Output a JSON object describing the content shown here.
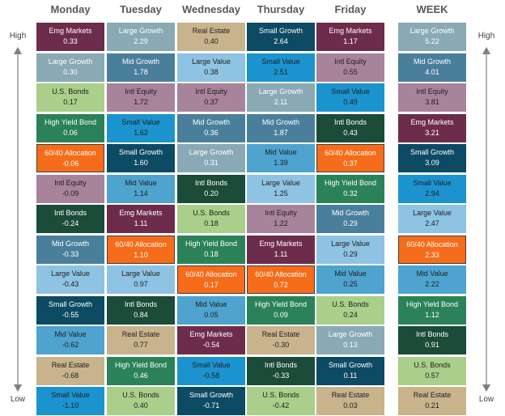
{
  "colors": {
    "Emg Markets": {
      "bg": "#6e2c4c",
      "fg": "#ffffff"
    },
    "Large Growth": {
      "bg": "#89a9b4",
      "fg": "#ffffff"
    },
    "Real Estate": {
      "bg": "#c8b38d",
      "fg": "#1f1f1f"
    },
    "Small Growth": {
      "bg": "#0d4a63",
      "fg": "#ffffff"
    },
    "Large Value": {
      "bg": "#8fc3e3",
      "fg": "#1f1f1f"
    },
    "Mid Growth": {
      "bg": "#4a7f9c",
      "fg": "#ffffff"
    },
    "Small Value": {
      "bg": "#1b93cf",
      "fg": "#1f1f1f"
    },
    "Intl Equity": {
      "bg": "#a8839c",
      "fg": "#1f1f1f"
    },
    "U.S. Bonds": {
      "bg": "#a9cf8a",
      "fg": "#1f1f1f"
    },
    "Intl Bonds": {
      "bg": "#1b4b39",
      "fg": "#ffffff"
    },
    "High Yield Bond": {
      "bg": "#2b8259",
      "fg": "#ffffff"
    },
    "60/40 Allocation": {
      "bg": "#f56c1a",
      "fg": "#ffffff"
    },
    "Mid Value": {
      "bg": "#4ea3cf",
      "fg": "#1f1f1f"
    }
  },
  "scale": {
    "high": "High",
    "low": "Low"
  },
  "chart_data": {
    "type": "table",
    "title": "",
    "highlight": "60/40 Allocation",
    "columns": [
      {
        "header": "Monday",
        "cells": [
          {
            "name": "Emg Markets",
            "value": "0.33"
          },
          {
            "name": "Large Growth",
            "value": "0.30"
          },
          {
            "name": "U.S. Bonds",
            "value": "0.17"
          },
          {
            "name": "High Yield Bond",
            "value": "0.06"
          },
          {
            "name": "60/40 Allocation",
            "value": "-0.06"
          },
          {
            "name": "Intl Equity",
            "value": "-0.09"
          },
          {
            "name": "Intl Bonds",
            "value": "-0.24"
          },
          {
            "name": "Mid Growth",
            "value": "-0.33"
          },
          {
            "name": "Large Value",
            "value": "-0.43"
          },
          {
            "name": "Small Growth",
            "value": "-0.55"
          },
          {
            "name": "Mid Value",
            "value": "-0.62"
          },
          {
            "name": "Real Estate",
            "value": "-0.68"
          },
          {
            "name": "Small Value",
            "value": "-1.10"
          }
        ]
      },
      {
        "header": "Tuesday",
        "cells": [
          {
            "name": "Large Growth",
            "value": "2.29"
          },
          {
            "name": "Mid Growth",
            "value": "1.78"
          },
          {
            "name": "Intl Equity",
            "value": "1.72"
          },
          {
            "name": "Small Value",
            "value": "1.62"
          },
          {
            "name": "Small Growth",
            "value": "1.60"
          },
          {
            "name": "Mid Value",
            "value": "1.14"
          },
          {
            "name": "Emg Markets",
            "value": "1.11"
          },
          {
            "name": "60/40 Allocation",
            "value": "1.10"
          },
          {
            "name": "Large Value",
            "value": "0.97"
          },
          {
            "name": "Intl Bonds",
            "value": "0.84"
          },
          {
            "name": "Real Estate",
            "value": "0.77"
          },
          {
            "name": "High Yield Bond",
            "value": "0.46"
          },
          {
            "name": "U.S. Bonds",
            "value": "0.40"
          }
        ]
      },
      {
        "header": "Wednesday",
        "cells": [
          {
            "name": "Real Estate",
            "value": "0.40"
          },
          {
            "name": "Large Value",
            "value": "0.38"
          },
          {
            "name": "Intl Equity",
            "value": "0.37"
          },
          {
            "name": "Mid Growth",
            "value": "0.36"
          },
          {
            "name": "Large Growth",
            "value": "0.31"
          },
          {
            "name": "Intl Bonds",
            "value": "0.20"
          },
          {
            "name": "U.S. Bonds",
            "value": "0.18"
          },
          {
            "name": "High Yield Bond",
            "value": "0.18"
          },
          {
            "name": "60/40 Allocation",
            "value": "0.17"
          },
          {
            "name": "Mid Value",
            "value": "0.05"
          },
          {
            "name": "Emg Markets",
            "value": "-0.54"
          },
          {
            "name": "Small Value",
            "value": "-0.58"
          },
          {
            "name": "Small Growth",
            "value": "-0.71"
          }
        ]
      },
      {
        "header": "Thursday",
        "cells": [
          {
            "name": "Small Growth",
            "value": "2.64"
          },
          {
            "name": "Small Value",
            "value": "2.51"
          },
          {
            "name": "Large Growth",
            "value": "2.11"
          },
          {
            "name": "Mid Growth",
            "value": "1.87"
          },
          {
            "name": "Mid Value",
            "value": "1.39"
          },
          {
            "name": "Large Value",
            "value": "1.25"
          },
          {
            "name": "Intl Equity",
            "value": "1.22"
          },
          {
            "name": "Emg Markets",
            "value": "1.11"
          },
          {
            "name": "60/40 Allocation",
            "value": "0.72"
          },
          {
            "name": "High Yield Bond",
            "value": "0.09"
          },
          {
            "name": "Real Estate",
            "value": "-0.30"
          },
          {
            "name": "Intl Bonds",
            "value": "-0.33"
          },
          {
            "name": "U.S. Bonds",
            "value": "-0.42"
          }
        ]
      },
      {
        "header": "Friday",
        "cells": [
          {
            "name": "Emg Markets",
            "value": "1.17"
          },
          {
            "name": "Intl Equity",
            "value": "0.55"
          },
          {
            "name": "Small Value",
            "value": "0.49"
          },
          {
            "name": "Intl Bonds",
            "value": "0.43"
          },
          {
            "name": "60/40 Allocation",
            "value": "0.37"
          },
          {
            "name": "High Yield Bond",
            "value": "0.32"
          },
          {
            "name": "Mid Growth",
            "value": "0.29"
          },
          {
            "name": "Large Value",
            "value": "0.29"
          },
          {
            "name": "Mid Value",
            "value": "0.25"
          },
          {
            "name": "U.S. Bonds",
            "value": "0.24"
          },
          {
            "name": "Large Growth",
            "value": "0.13"
          },
          {
            "name": "Small Growth",
            "value": "0.11"
          },
          {
            "name": "Real Estate",
            "value": "0.03"
          }
        ]
      },
      {
        "header": "WEEK",
        "cells": [
          {
            "name": "Large Growth",
            "value": "5.22"
          },
          {
            "name": "Mid Growth",
            "value": "4.01"
          },
          {
            "name": "Intl Equity",
            "value": "3.81"
          },
          {
            "name": "Emg Markets",
            "value": "3.21"
          },
          {
            "name": "Small Growth",
            "value": "3.09"
          },
          {
            "name": "Small Value",
            "value": "2.94"
          },
          {
            "name": "Large Value",
            "value": "2.47"
          },
          {
            "name": "60/40 Allocation",
            "value": "2.33"
          },
          {
            "name": "Mid Value",
            "value": "2.22"
          },
          {
            "name": "High Yield Bond",
            "value": "1.12"
          },
          {
            "name": "Intl Bonds",
            "value": "0.91"
          },
          {
            "name": "U.S. Bonds",
            "value": "0.57"
          },
          {
            "name": "Real Estate",
            "value": "0.21"
          }
        ]
      }
    ]
  }
}
